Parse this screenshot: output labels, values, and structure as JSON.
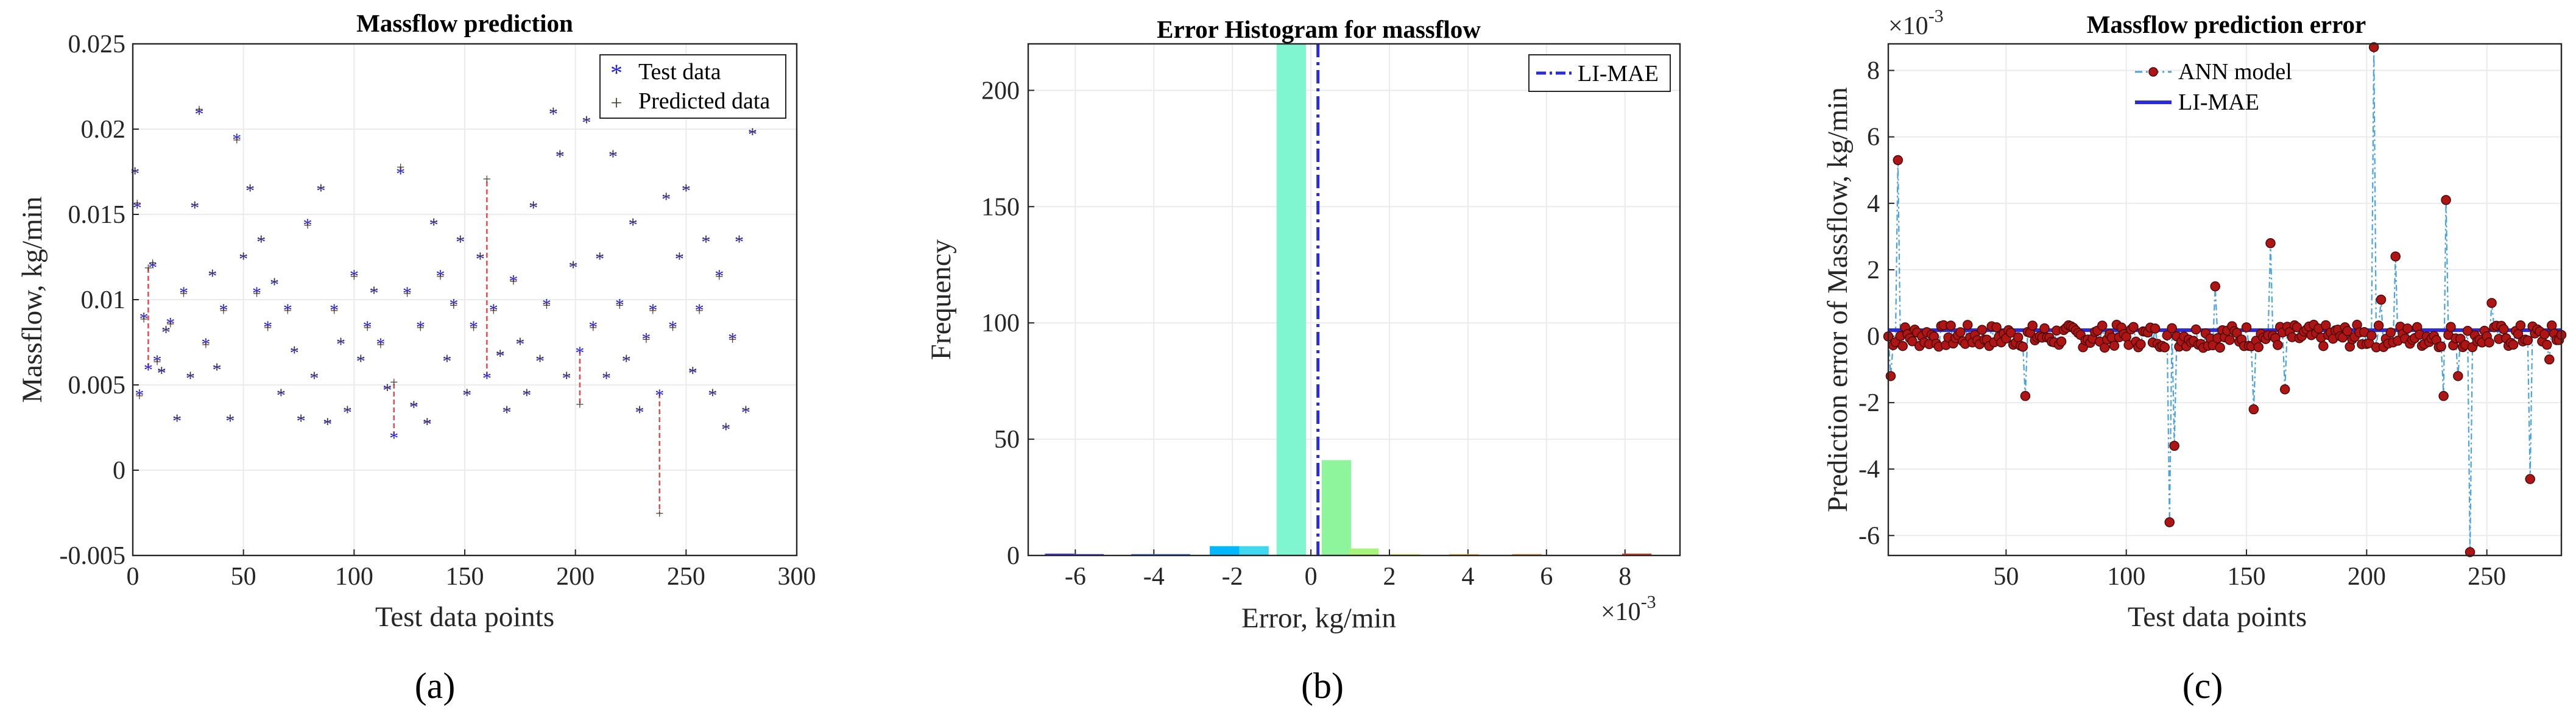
{
  "chart_data": [
    {
      "type": "scatter",
      "title": "Massflow prediction",
      "xlabel": "Test data points",
      "ylabel": "Massflow, kg/min",
      "xlim": [
        0,
        300
      ],
      "ylim": [
        -0.005,
        0.025
      ],
      "x_ticks": [
        "0",
        "50",
        "100",
        "150",
        "200",
        "250",
        "300"
      ],
      "y_ticks": [
        "-0.005",
        "0",
        "0.005",
        "0.01",
        "0.015",
        "0.02",
        "0.025"
      ],
      "legend": {
        "placement": "top-right",
        "entries": [
          "Test data",
          "Predicted data"
        ]
      },
      "colors": {
        "test": "#1f1fe6",
        "predicted": "#4a3a2a",
        "error_lines": "#e8474c"
      },
      "grid": true,
      "series": [
        {
          "name": "Test data",
          "marker": "*",
          "x": [
            1,
            2,
            3,
            5,
            7,
            9,
            11,
            13,
            15,
            17,
            20,
            23,
            26,
            28,
            30,
            33,
            36,
            38,
            41,
            44,
            47,
            50,
            53,
            56,
            58,
            61,
            64,
            67,
            70,
            73,
            76,
            79,
            82,
            85,
            88,
            91,
            94,
            97,
            100,
            103,
            106,
            109,
            112,
            115,
            118,
            121,
            124,
            127,
            130,
            133,
            136,
            139,
            142,
            145,
            148,
            151,
            154,
            157,
            160,
            163,
            166,
            169,
            172,
            175,
            178,
            181,
            184,
            187,
            190,
            193,
            196,
            199,
            202,
            205,
            208,
            211,
            214,
            217,
            220,
            223,
            226,
            229,
            232,
            235,
            238,
            241,
            244,
            247,
            250,
            253,
            256,
            259,
            262,
            265,
            268,
            271,
            274,
            277,
            280
          ],
          "y": [
            0.0175,
            0.0155,
            0.0045,
            0.009,
            0.006,
            0.012,
            0.0065,
            0.0058,
            0.0082,
            0.0087,
            0.003,
            0.0105,
            0.0055,
            0.0155,
            0.021,
            0.0075,
            0.0115,
            0.006,
            0.0095,
            0.003,
            0.0195,
            0.0125,
            0.0165,
            0.0105,
            0.0135,
            0.0085,
            0.011,
            0.0045,
            0.0095,
            0.007,
            0.003,
            0.0145,
            0.0055,
            0.0165,
            0.0028,
            0.0095,
            0.0075,
            0.0035,
            0.0115,
            0.0065,
            0.0085,
            0.0105,
            0.0075,
            0.0048,
            0.002,
            0.0175,
            0.0105,
            0.0038,
            0.0085,
            0.0028,
            0.0145,
            0.0115,
            0.0065,
            0.0098,
            0.0135,
            0.0045,
            0.0085,
            0.0125,
            0.0055,
            0.0095,
            0.0068,
            0.0035,
            0.0112,
            0.0075,
            0.0045,
            0.0155,
            0.0065,
            0.0098,
            0.021,
            0.0185,
            0.0055,
            0.012,
            0.007,
            0.0205,
            0.0085,
            0.0125,
            0.0055,
            0.0185,
            0.0098,
            0.0065,
            0.0145,
            0.0035,
            0.0078,
            0.0095,
            0.0045,
            0.016,
            0.0085,
            0.0125,
            0.0165,
            0.0058,
            0.0095,
            0.0135,
            0.0045,
            0.0115,
            0.0025,
            0.0078,
            0.0135,
            0.0035,
            0.0198
          ]
        },
        {
          "name": "Predicted data",
          "marker": "+",
          "x": [
            1,
            2,
            3,
            5,
            7,
            9,
            11,
            13,
            15,
            17,
            20,
            23,
            26,
            28,
            30,
            33,
            36,
            38,
            41,
            44,
            47,
            50,
            53,
            56,
            58,
            61,
            64,
            67,
            70,
            73,
            76,
            79,
            82,
            85,
            88,
            91,
            94,
            97,
            100,
            103,
            106,
            109,
            112,
            115,
            118,
            121,
            124,
            127,
            130,
            133,
            136,
            139,
            142,
            145,
            148,
            151,
            154,
            157,
            160,
            163,
            166,
            169,
            172,
            175,
            178,
            181,
            184,
            187,
            190,
            193,
            196,
            199,
            202,
            205,
            208,
            211,
            214,
            217,
            220,
            223,
            226,
            229,
            232,
            235,
            238,
            241,
            244,
            247,
            250,
            253,
            256,
            259,
            262,
            265,
            268,
            271,
            274,
            277,
            280
          ],
          "y": [
            0.0176,
            0.0157,
            0.0044,
            0.0089,
            0.0119,
            0.0122,
            0.0064,
            0.0059,
            0.0083,
            0.0086,
            0.0031,
            0.0104,
            0.0056,
            0.0156,
            0.0212,
            0.0074,
            0.0116,
            0.0061,
            0.0094,
            0.0031,
            0.0194,
            0.0126,
            0.0166,
            0.0104,
            0.0136,
            0.0084,
            0.0111,
            0.0046,
            0.0094,
            0.0071,
            0.0031,
            0.0144,
            0.0056,
            0.0166,
            0.0029,
            0.0094,
            0.0076,
            0.0036,
            0.0114,
            0.0066,
            0.0084,
            0.0106,
            0.0074,
            0.0049,
            0.0052,
            0.0178,
            0.0104,
            0.0039,
            0.0084,
            0.0029,
            0.0146,
            0.0114,
            0.0066,
            0.0097,
            0.0136,
            0.0046,
            0.0084,
            0.0126,
            0.0171,
            0.0094,
            0.0069,
            0.0036,
            0.0111,
            0.0076,
            0.0046,
            0.0156,
            0.0066,
            0.0097,
            0.0211,
            0.0186,
            0.0056,
            0.0121,
            0.0039,
            0.0206,
            0.0084,
            0.0126,
            0.0056,
            0.0186,
            0.0097,
            0.0066,
            0.0146,
            0.0036,
            0.0077,
            0.0094,
            -0.0025,
            0.0161,
            0.0084,
            0.0126,
            0.0166,
            0.0059,
            0.0094,
            0.0136,
            0.0046,
            0.0114,
            0.0026,
            0.0077,
            0.0136,
            0.0036,
            0.0199
          ]
        }
      ]
    },
    {
      "type": "bar",
      "title": "Error Histogram for massflow",
      "xlabel": "Error, kg/min",
      "ylabel": "Frequency",
      "x_exponent": "×10",
      "x_exponent_power": "-3",
      "xlim": [
        -0.0072,
        0.0094
      ],
      "ylim": [
        0,
        220
      ],
      "x_ticks": [
        "-6",
        "-4",
        "-2",
        "0",
        "2",
        "4",
        "6",
        "8"
      ],
      "x_tick_values": [
        -0.006,
        -0.004,
        -0.002,
        0,
        0.002,
        0.004,
        0.006,
        0.008
      ],
      "y_ticks": [
        "0",
        "50",
        "100",
        "150",
        "200"
      ],
      "y_tick_values": [
        0,
        50,
        100,
        150,
        200
      ],
      "legend": {
        "placement": "top-right",
        "entries": [
          "LI-MAE"
        ]
      },
      "li_mae": 0.00018,
      "grid": true,
      "bin_width": 0.00075,
      "bins": [
        {
          "center": -0.0064,
          "value": 0.8,
          "color": "#3b3bff"
        },
        {
          "center": -0.00565,
          "value": 0.6,
          "color": "#3b3bff"
        },
        {
          "center": -0.0042,
          "value": 0.6,
          "color": "#2f6bff"
        },
        {
          "center": -0.00345,
          "value": 0.6,
          "color": "#2f6bff"
        },
        {
          "center": -0.0022,
          "value": 4,
          "color": "#00b8ff"
        },
        {
          "center": -0.00145,
          "value": 4,
          "color": "#40d8f0"
        },
        {
          "center": -0.0005,
          "value": 220,
          "color": "#7ff5d0"
        },
        {
          "center": 0.00065,
          "value": 41,
          "color": "#8ff59c"
        },
        {
          "center": 0.00135,
          "value": 3,
          "color": "#a8f37a"
        },
        {
          "center": 0.0024,
          "value": 0.6,
          "color": "#e8f04a"
        },
        {
          "center": 0.0039,
          "value": 0.6,
          "color": "#ffb52e"
        },
        {
          "center": 0.0055,
          "value": 0.6,
          "color": "#ff8a1e"
        },
        {
          "center": 0.0083,
          "value": 0.8,
          "color": "#e83a1a"
        }
      ]
    },
    {
      "type": "line",
      "title": "Massflow prediction error",
      "xlabel": "Test data points",
      "ylabel": "Prediction error of Massflow, kg/min",
      "y_exponent": "×10",
      "y_exponent_power": "-3",
      "xlim": [
        1,
        281
      ],
      "ylim": [
        -6.6,
        8.8
      ],
      "x_ticks": [
        "50",
        "100",
        "150",
        "200",
        "250"
      ],
      "x_tick_values": [
        50,
        100,
        150,
        200,
        250
      ],
      "y_ticks": [
        "-6",
        "-4",
        "-2",
        "0",
        "2",
        "4",
        "6",
        "8"
      ],
      "y_tick_values": [
        -6,
        -4,
        -2,
        0,
        2,
        4,
        6,
        8
      ],
      "legend": {
        "placement": "top-center",
        "entries": [
          "ANN model",
          "LI-MAE"
        ]
      },
      "li_mae": 0.18,
      "colors": {
        "markers": "#b01515",
        "stems": "#4aa3df",
        "li_mae": "#2b2bd9"
      },
      "grid": true,
      "spikes": [
        [
          2,
          -1.2
        ],
        [
          5,
          5.3
        ],
        [
          58,
          -1.8
        ],
        [
          118,
          -5.6
        ],
        [
          120,
          -3.3
        ],
        [
          137,
          1.5
        ],
        [
          153,
          -2.2
        ],
        [
          160,
          2.8
        ],
        [
          166,
          -1.6
        ],
        [
          203,
          8.7
        ],
        [
          206,
          1.1
        ],
        [
          212,
          2.4
        ],
        [
          232,
          -1.8
        ],
        [
          233,
          4.1
        ],
        [
          238,
          -1.2
        ],
        [
          243,
          -6.5
        ],
        [
          252,
          1.0
        ],
        [
          268,
          -4.3
        ],
        [
          276,
          -0.7
        ]
      ]
    }
  ],
  "panel_labels": [
    "(a)",
    "(b)",
    "(c)"
  ],
  "exp_label": "×10",
  "exp_power": "-3"
}
